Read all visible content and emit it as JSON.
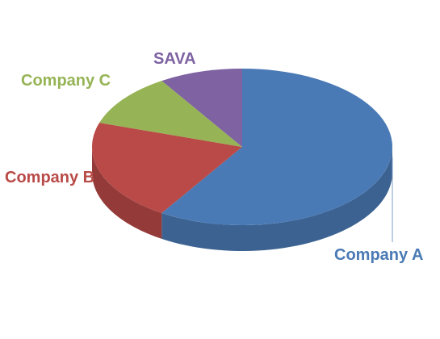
{
  "chart_data": {
    "type": "pie",
    "style": "3d",
    "title": "",
    "slices": [
      {
        "label": "Company A",
        "value": 59,
        "color": "#4a7ab5"
      },
      {
        "label": "Company B",
        "value": 21,
        "color": "#b94a47"
      },
      {
        "label": "Company C",
        "value": 11,
        "color": "#96b455"
      },
      {
        "label": "SAVA",
        "value": 9,
        "color": "#7e62a2"
      }
    ]
  }
}
